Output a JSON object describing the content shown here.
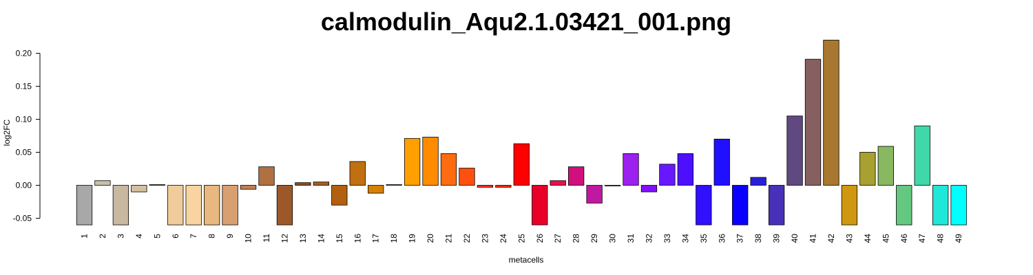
{
  "chart_data": {
    "type": "bar",
    "title": "calmodulin_Aqu2.1.03421_001.png",
    "xlabel": "metacells",
    "ylabel": "log2FC",
    "ylim": [
      -0.06,
      0.22
    ],
    "yticks": [
      "-0.05",
      "0.00",
      "0.05",
      "0.10",
      "0.15",
      "0.20"
    ],
    "ytick_values": [
      -0.05,
      0.0,
      0.05,
      0.1,
      0.15,
      0.2
    ],
    "grid": false,
    "categories": [
      "1",
      "2",
      "3",
      "4",
      "5",
      "6",
      "7",
      "8",
      "9",
      "10",
      "11",
      "12",
      "13",
      "14",
      "15",
      "16",
      "17",
      "18",
      "19",
      "20",
      "21",
      "22",
      "23",
      "24",
      "25",
      "26",
      "27",
      "28",
      "29",
      "30",
      "31",
      "32",
      "33",
      "34",
      "35",
      "36",
      "37",
      "38",
      "39",
      "40",
      "41",
      "42",
      "43",
      "44",
      "45",
      "46",
      "47",
      "48",
      "49"
    ],
    "values": [
      -0.06,
      0.007,
      -0.06,
      -0.01,
      0.001,
      -0.06,
      -0.06,
      -0.06,
      -0.06,
      -0.006,
      0.028,
      -0.06,
      0.004,
      0.005,
      -0.03,
      0.036,
      -0.012,
      0.001,
      0.071,
      0.073,
      0.048,
      0.026,
      -0.003,
      -0.003,
      0.063,
      -0.06,
      0.007,
      0.028,
      -0.027,
      -0.001,
      0.048,
      -0.01,
      0.032,
      0.048,
      -0.06,
      0.07,
      -0.06,
      0.012,
      -0.06,
      0.105,
      0.191,
      0.22,
      -0.06,
      0.05,
      0.059,
      -0.06,
      0.09,
      -0.06,
      -0.06
    ],
    "colors": [
      "#a8a8a8",
      "#c8c0a8",
      "#c8b8a0",
      "#d4c0a0",
      "#b89870",
      "#f0cc9c",
      "#f8d4a0",
      "#e8b880",
      "#d8a070",
      "#c08050",
      "#b07040",
      "#9c5828",
      "#8c4c24",
      "#a06028",
      "#b06010",
      "#c07010",
      "#d88000",
      "#e09000",
      "#ffa000",
      "#ff8c00",
      "#ff6c10",
      "#ff5010",
      "#ff3020",
      "#ff2a10",
      "#ff0000",
      "#e80028",
      "#e8104c",
      "#d0107c",
      "#c018a0",
      "#b018c0",
      "#9c20f0",
      "#8010ff",
      "#6818ff",
      "#4c10ff",
      "#3010ff",
      "#2010ff",
      "#0a00ff",
      "#2820d8",
      "#4830b8",
      "#604880",
      "#866060",
      "#a87830",
      "#d09810",
      "#a8a030",
      "#88b860",
      "#64c880",
      "#40d8a8",
      "#20e8d8",
      "#00ffff"
    ]
  }
}
